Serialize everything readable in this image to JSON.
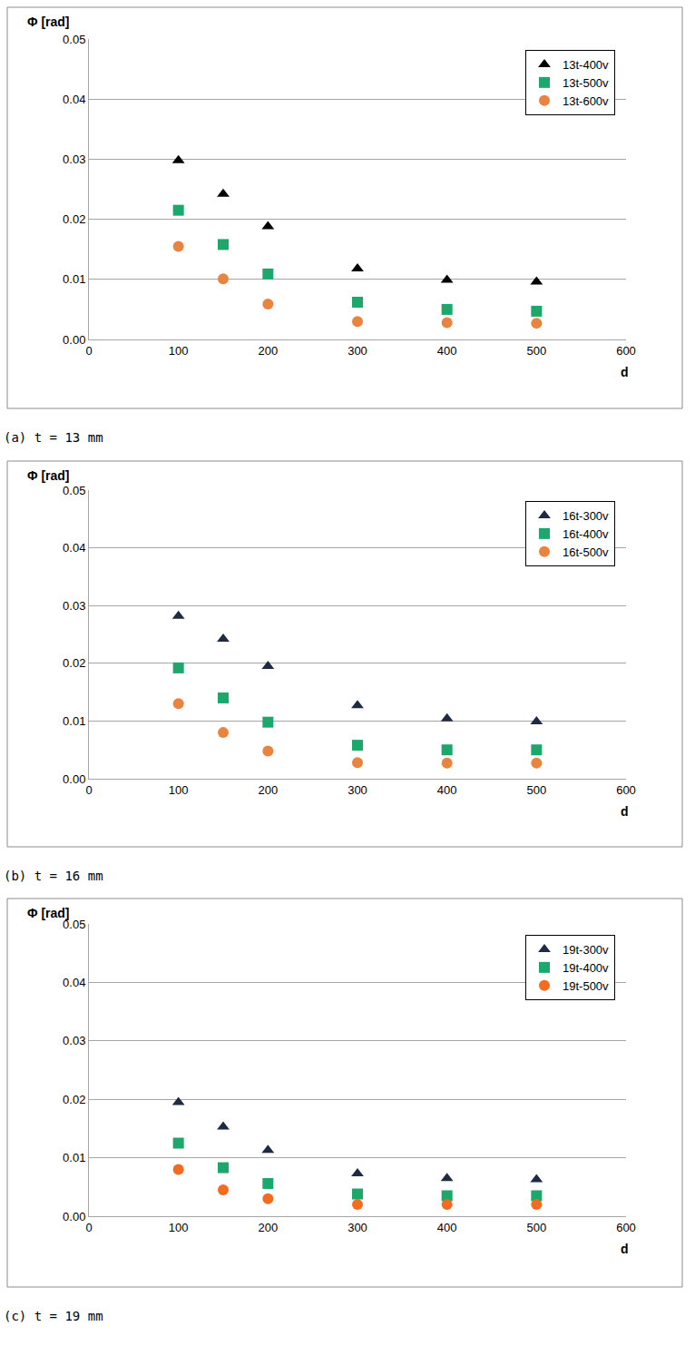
{
  "chart_data": [
    {
      "type": "scatter",
      "caption": "(a) t = 13 mm",
      "y_label": "Φ [rad]",
      "x_label": "d",
      "x": [
        100,
        150,
        200,
        300,
        400,
        500
      ],
      "series": [
        {
          "name": "13t-400v",
          "color": "#000000",
          "marker": "triangle",
          "values": [
            0.0298,
            0.0242,
            0.0188,
            0.0118,
            0.0099,
            0.0096
          ]
        },
        {
          "name": "13t-500v",
          "color": "#1ba86a",
          "marker": "square",
          "values": [
            0.0215,
            0.0158,
            0.0109,
            0.0062,
            0.005,
            0.0047
          ]
        },
        {
          "name": "13t-600v",
          "color": "#e8843f",
          "marker": "circle",
          "values": [
            0.0155,
            0.0101,
            0.0059,
            0.003,
            0.0028,
            0.0027
          ]
        }
      ],
      "xlim": [
        0,
        600
      ],
      "xticks": [
        0,
        100,
        200,
        300,
        400,
        500,
        600
      ],
      "ylim": [
        0,
        0.05
      ],
      "yticks": [
        {
          "value": 0,
          "label": "0.00"
        },
        {
          "value": 0.01,
          "label": "0.01"
        },
        {
          "value": 0.02,
          "label": "0.02"
        },
        {
          "value": 0.03,
          "label": "0.03"
        },
        {
          "value": 0.04,
          "label": "0.04"
        },
        {
          "value": 0.05,
          "label": "0.05"
        }
      ],
      "grid": "y",
      "legend": "top right"
    },
    {
      "type": "scatter",
      "caption": "(b) t = 16 mm",
      "y_label": "Φ [rad]",
      "x_label": "d",
      "x": [
        100,
        150,
        200,
        300,
        400,
        500
      ],
      "series": [
        {
          "name": "16t-300v",
          "color": "#1f2a44",
          "marker": "triangle",
          "values": [
            0.0282,
            0.0242,
            0.0195,
            0.0127,
            0.0104,
            0.0099
          ]
        },
        {
          "name": "16t-400v",
          "color": "#1ba86a",
          "marker": "square",
          "values": [
            0.0192,
            0.014,
            0.0098,
            0.0058,
            0.005,
            0.005
          ]
        },
        {
          "name": "16t-500v",
          "color": "#e8843f",
          "marker": "circle",
          "values": [
            0.013,
            0.008,
            0.0048,
            0.0028,
            0.0027,
            0.0027
          ]
        }
      ],
      "xlim": [
        0,
        600
      ],
      "xticks": [
        0,
        100,
        200,
        300,
        400,
        500,
        600
      ],
      "ylim": [
        0,
        0.05
      ],
      "yticks": [
        {
          "value": 0,
          "label": "0.00"
        },
        {
          "value": 0.01,
          "label": "0.01"
        },
        {
          "value": 0.02,
          "label": "0.02"
        },
        {
          "value": 0.03,
          "label": "0.03"
        },
        {
          "value": 0.04,
          "label": "0.04"
        },
        {
          "value": 0.05,
          "label": "0.05"
        }
      ],
      "grid": "y",
      "legend": "top right"
    },
    {
      "type": "scatter",
      "caption": "(c) t = 19 mm",
      "y_label": "Φ [rad]",
      "x_label": "d",
      "x": [
        100,
        150,
        200,
        300,
        400,
        500
      ],
      "series": [
        {
          "name": "19t-300v",
          "color": "#1f2a44",
          "marker": "triangle",
          "values": [
            0.0195,
            0.0153,
            0.0113,
            0.0073,
            0.0065,
            0.0063
          ]
        },
        {
          "name": "19t-400v",
          "color": "#1ba86a",
          "marker": "square",
          "values": [
            0.0125,
            0.0083,
            0.0056,
            0.0038,
            0.0035,
            0.0035
          ]
        },
        {
          "name": "19t-500v",
          "color": "#f26b21",
          "marker": "circle",
          "values": [
            0.008,
            0.0045,
            0.003,
            0.002,
            0.002,
            0.002
          ]
        }
      ],
      "xlim": [
        0,
        600
      ],
      "xticks": [
        0,
        100,
        200,
        300,
        400,
        500,
        600
      ],
      "ylim": [
        0,
        0.05
      ],
      "yticks": [
        {
          "value": 0,
          "label": "0.00"
        },
        {
          "value": 0.01,
          "label": "0.01"
        },
        {
          "value": 0.02,
          "label": "0.02"
        },
        {
          "value": 0.03,
          "label": "0.03"
        },
        {
          "value": 0.04,
          "label": "0.04"
        },
        {
          "value": 0.05,
          "label": "0.05"
        }
      ],
      "grid": "y",
      "legend": "top right"
    }
  ]
}
